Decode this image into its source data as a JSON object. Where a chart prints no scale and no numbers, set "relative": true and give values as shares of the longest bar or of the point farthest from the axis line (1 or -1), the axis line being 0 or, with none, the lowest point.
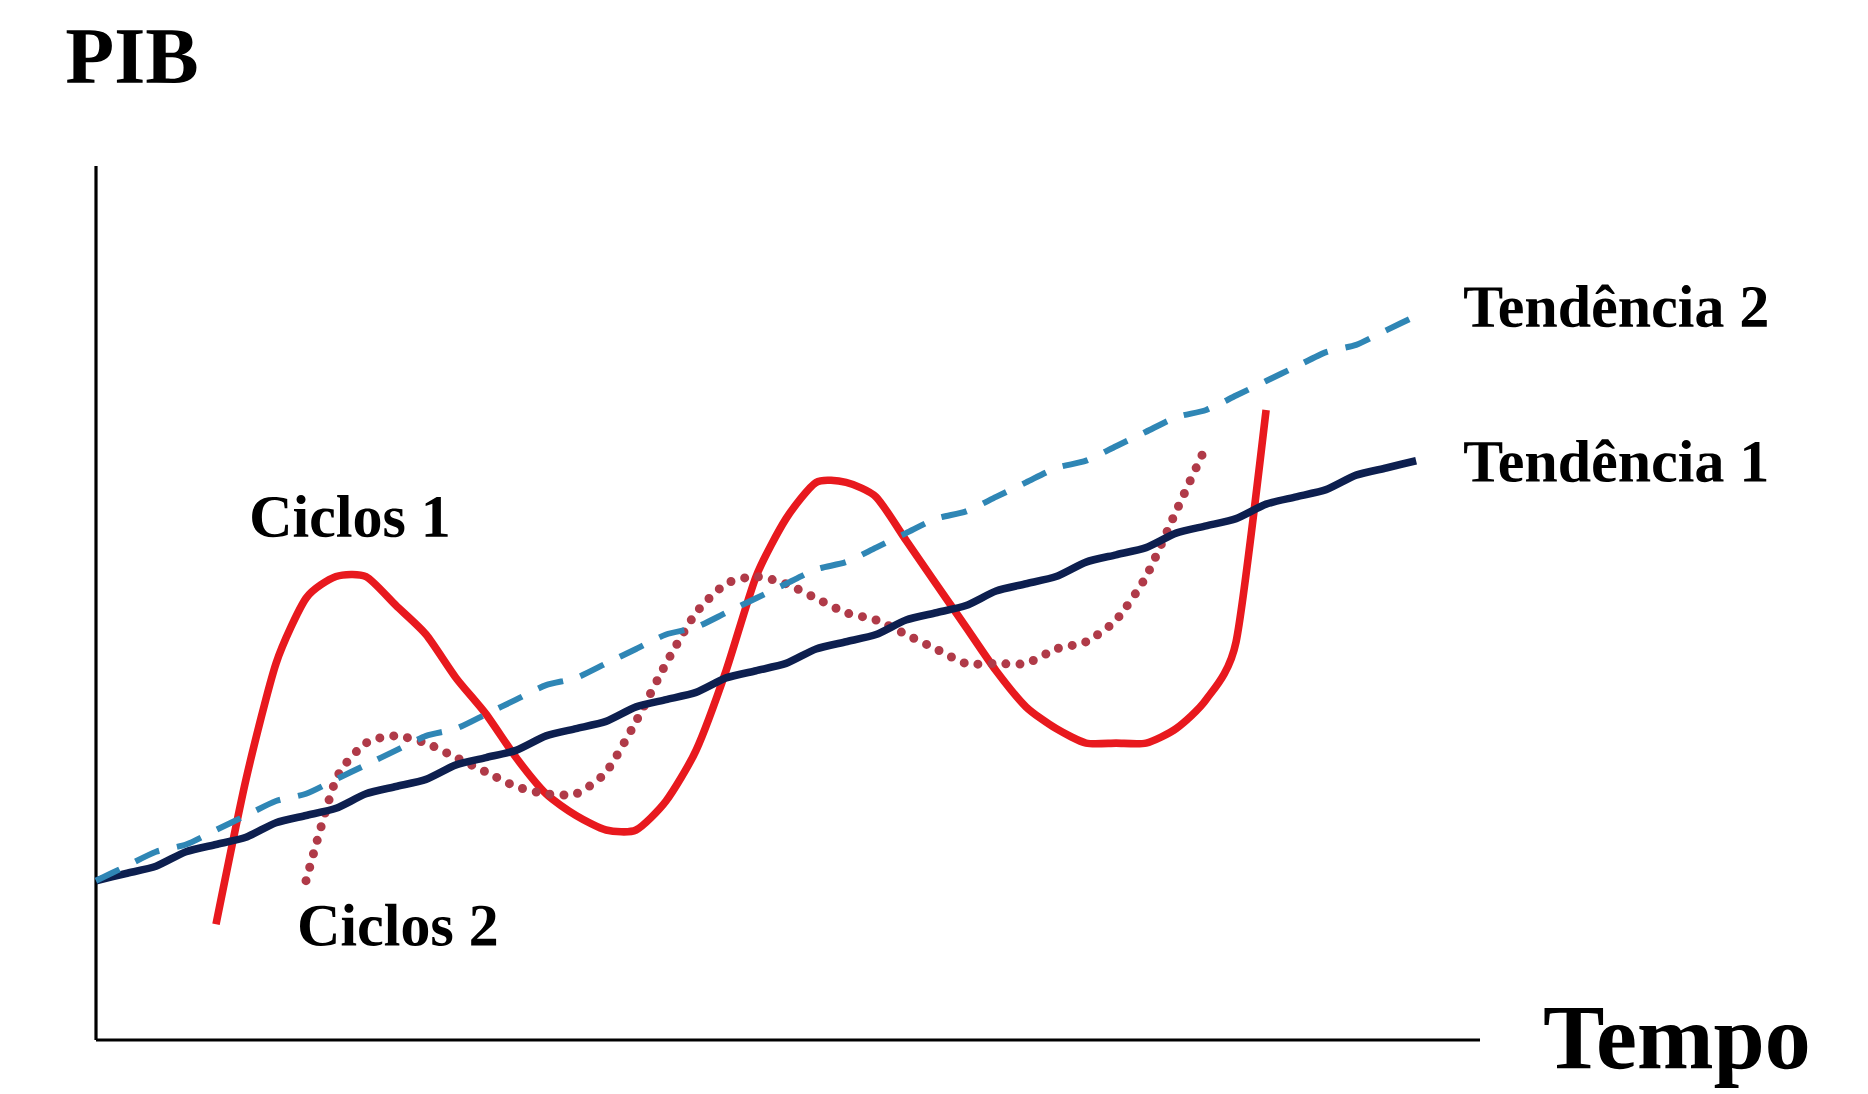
{
  "chart_data": {
    "type": "line",
    "relative": true,
    "xlabel": "Tempo",
    "ylabel": "PIB",
    "categories": [
      null,
      null,
      null,
      null,
      null,
      null,
      null,
      null,
      null,
      null,
      null,
      null,
      null,
      null,
      null,
      null,
      null,
      null,
      null,
      null,
      null,
      null,
      null,
      null,
      null,
      null,
      null,
      null,
      null,
      null,
      null,
      null,
      null,
      null,
      null,
      null,
      null,
      null,
      null,
      null,
      null,
      null,
      null,
      null,
      null
    ],
    "series": [
      {
        "name": "Ciclos 1",
        "color": "#e8191e",
        "line_style": "solid",
        "values": [
          null,
          null,
          null,
          null,
          0.16,
          0.36,
          0.52,
          0.61,
          0.64,
          0.64,
          0.6,
          0.56,
          0.5,
          0.45,
          0.39,
          0.34,
          0.31,
          0.29,
          0.29,
          0.33,
          0.4,
          0.51,
          0.64,
          0.72,
          0.77,
          0.77,
          0.75,
          0.69,
          0.63,
          0.57,
          0.51,
          0.46,
          0.43,
          0.41,
          0.41,
          0.41,
          0.43,
          0.47,
          0.55,
          0.87,
          null,
          null,
          null,
          null,
          null
        ]
      },
      {
        "name": "Ciclos 2",
        "color": "#b03a48",
        "line_style": "dotted",
        "values": [
          null,
          null,
          null,
          null,
          null,
          null,
          null,
          0.22,
          0.36,
          0.41,
          0.42,
          0.41,
          0.39,
          0.37,
          0.35,
          0.34,
          0.34,
          0.37,
          0.44,
          0.52,
          0.59,
          0.63,
          0.64,
          0.63,
          0.61,
          0.59,
          0.58,
          0.56,
          0.54,
          0.52,
          0.52,
          0.52,
          0.54,
          0.55,
          0.58,
          0.64,
          0.73,
          0.82,
          null,
          null,
          null,
          null,
          null,
          null,
          null
        ]
      },
      {
        "name": "Tendência 1",
        "color": "#0d1f4f",
        "line_style": "solid",
        "values": [
          0.22,
          0.23,
          0.24,
          0.26,
          0.27,
          0.28,
          0.3,
          0.31,
          0.32,
          0.34,
          0.35,
          0.36,
          0.38,
          0.39,
          0.4,
          0.42,
          0.43,
          0.44,
          0.46,
          0.47,
          0.48,
          0.5,
          0.51,
          0.52,
          0.54,
          0.55,
          0.56,
          0.58,
          0.59,
          0.6,
          0.62,
          0.63,
          0.64,
          0.66,
          0.67,
          0.68,
          0.7,
          0.71,
          0.72,
          0.74,
          0.75,
          0.76,
          0.78,
          0.79,
          0.8
        ]
      },
      {
        "name": "Tendência 2",
        "color": "#2f86b5",
        "line_style": "dashed",
        "values": [
          0.22,
          0.24,
          0.26,
          0.27,
          0.29,
          0.31,
          0.33,
          0.34,
          0.36,
          0.38,
          0.4,
          0.42,
          0.43,
          0.45,
          0.47,
          0.49,
          0.5,
          0.52,
          0.54,
          0.56,
          0.57,
          0.59,
          0.61,
          0.63,
          0.65,
          0.66,
          0.68,
          0.7,
          0.72,
          0.73,
          0.75,
          0.77,
          0.79,
          0.8,
          0.82,
          0.84,
          0.86,
          0.87,
          0.89,
          0.91,
          0.93,
          0.95,
          0.96,
          0.98,
          1.0
        ]
      }
    ]
  }
}
